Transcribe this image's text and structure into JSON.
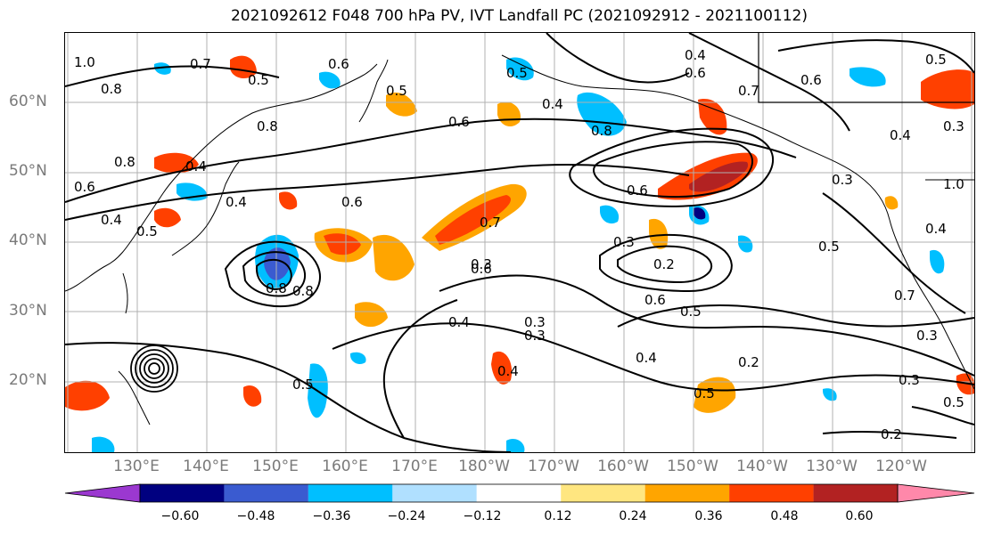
{
  "title": "2021092612 F048 700 hPa PV, IVT Landfall PC (2021092912 - 2021100112)",
  "lat_labels": [
    "60°N",
    "50°N",
    "40°N",
    "30°N",
    "20°N"
  ],
  "lon_labels": [
    "130°E",
    "140°E",
    "150°E",
    "160°E",
    "170°E",
    "180°W",
    "170°W",
    "160°W",
    "150°W",
    "140°W",
    "130°W",
    "120°W"
  ],
  "colorbar": {
    "ticks": [
      "−0.60",
      "−0.48",
      "−0.36",
      "−0.24",
      "−0.12",
      "0.12",
      "0.24",
      "0.36",
      "0.48",
      "0.60"
    ],
    "colors": [
      "#9b38d0",
      "#000080",
      "#3a5bd0",
      "#00bfff",
      "#b0e0ff",
      "#ffffff",
      "#ffe680",
      "#ffa500",
      "#ff4000",
      "#b22222",
      "#ff88aa"
    ]
  },
  "contour_labels": [
    "1.0",
    "0.8",
    "0.7",
    "0.5",
    "0.6",
    "0.4",
    "0.5",
    "0.8",
    "0.4",
    "0.8",
    "0.6",
    "0.7",
    "0.5",
    "0.8",
    "0.6",
    "0.4",
    "0.5",
    "0.6",
    "0.8",
    "0.6",
    "0.4",
    "0.4",
    "0.7",
    "0.6",
    "0.3",
    "0.2",
    "0.8",
    "0.6",
    "0.3",
    "0.3",
    "0.4",
    "0.3",
    "0.4",
    "0.5",
    "0.6",
    "0.5",
    "0.4",
    "0.5",
    "0.2",
    "0.3",
    "0.2",
    "0.5",
    "0.3",
    "0.7",
    "0.5",
    "0.3",
    "0.4",
    "1.0",
    "0.6",
    "0.5",
    "0.4",
    "0.3"
  ]
}
